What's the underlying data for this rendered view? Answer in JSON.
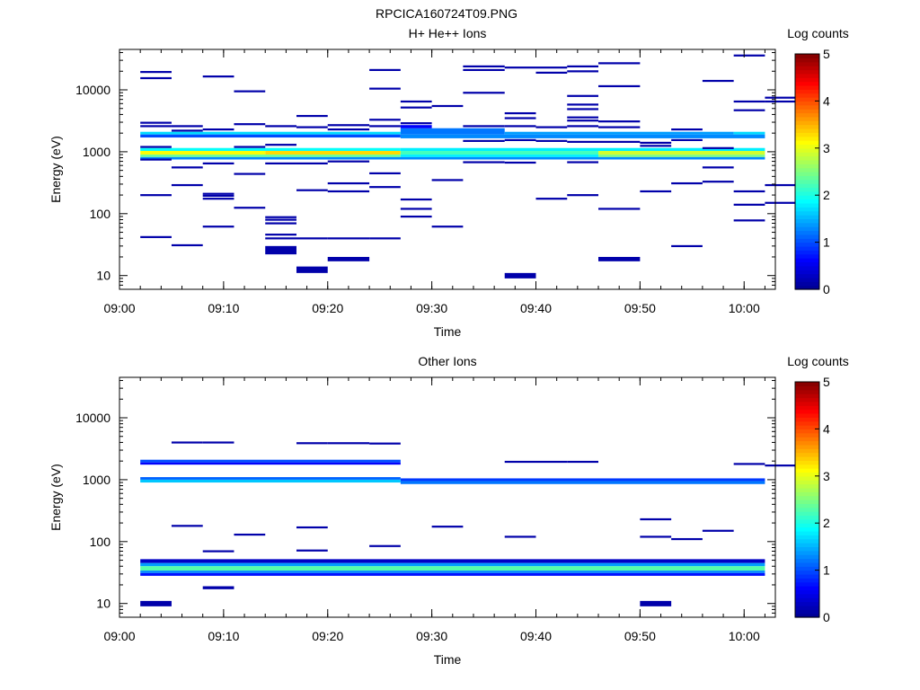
{
  "figure_title": "RPCICA160724T09.PNG",
  "colormap": [
    "#00008f",
    "#0000ff",
    "#0080ff",
    "#00ffff",
    "#80ff80",
    "#ffff00",
    "#ff8000",
    "#ff0000",
    "#800000"
  ],
  "chart_data": [
    {
      "type": "heatmap",
      "title": "H+ He++ Ions",
      "xlabel": "Time",
      "ylabel": "Energy (eV)",
      "x_ticks": [
        "09:00",
        "09:10",
        "09:20",
        "09:30",
        "09:40",
        "09:50",
        "10:00"
      ],
      "x_range": [
        "09:00",
        "10:03"
      ],
      "y_scale": "log",
      "y_ticks": [
        "10",
        "100",
        "1000",
        "10000"
      ],
      "y_range_eV": [
        6,
        45000
      ],
      "colorbar": {
        "label": "Log counts",
        "range": [
          0,
          5
        ],
        "ticks": [
          "0",
          "1",
          "2",
          "3",
          "4",
          "5"
        ]
      },
      "time_bins": [
        "09:02",
        "09:05",
        "09:08",
        "09:11",
        "09:14",
        "09:17",
        "09:20",
        "09:24",
        "09:27",
        "09:30",
        "09:33",
        "09:37",
        "09:40",
        "09:43",
        "09:46",
        "09:50",
        "09:53",
        "09:56",
        "09:59",
        "10:02"
      ],
      "cells": [
        {
          "t0": "09:02",
          "t1": "09:27",
          "e0": 1900,
          "e1": 2100,
          "v": 1.7
        },
        {
          "t0": "09:27",
          "t1": "09:37",
          "e0": 1900,
          "e1": 2400,
          "v": 1.2
        },
        {
          "t0": "09:37",
          "t1": "09:59",
          "e0": 1900,
          "e1": 2100,
          "v": 1.4
        },
        {
          "t0": "09:59",
          "t1": "10:02",
          "e0": 1900,
          "e1": 2100,
          "v": 1.7
        },
        {
          "t0": "09:02",
          "t1": "09:27",
          "e0": 1700,
          "e1": 1900,
          "v": 1.0
        },
        {
          "t0": "09:27",
          "t1": "10:02",
          "e0": 1650,
          "e1": 1900,
          "v": 1.3
        },
        {
          "t0": "09:02",
          "t1": "09:27",
          "e0": 1030,
          "e1": 1150,
          "v": 1.9
        },
        {
          "t0": "09:27",
          "t1": "10:02",
          "e0": 1030,
          "e1": 1150,
          "v": 1.8
        },
        {
          "t0": "09:02",
          "t1": "09:14",
          "e0": 900,
          "e1": 1030,
          "v": 3.1
        },
        {
          "t0": "09:14",
          "t1": "09:27",
          "e0": 900,
          "e1": 1030,
          "v": 3.3
        },
        {
          "t0": "09:27",
          "t1": "09:46",
          "e0": 900,
          "e1": 1030,
          "v": 2.2
        },
        {
          "t0": "09:46",
          "t1": "10:02",
          "e0": 900,
          "e1": 1030,
          "v": 2.9
        },
        {
          "t0": "09:02",
          "t1": "09:27",
          "e0": 820,
          "e1": 900,
          "v": 2.4
        },
        {
          "t0": "09:27",
          "t1": "09:46",
          "e0": 820,
          "e1": 900,
          "v": 1.8
        },
        {
          "t0": "09:46",
          "t1": "10:02",
          "e0": 820,
          "e1": 900,
          "v": 2.5
        },
        {
          "t0": "09:02",
          "t1": "10:02",
          "e0": 750,
          "e1": 820,
          "v": 1.3
        },
        {
          "t0": "09:27",
          "t1": "09:30",
          "e0": 2400,
          "e1": 2700,
          "v": 0.6
        },
        {
          "t0": "09:37",
          "t1": "09:40",
          "e0": 9,
          "e1": 11,
          "v": 0.15
        },
        {
          "t0": "09:14",
          "t1": "09:17",
          "e0": 22,
          "e1": 30,
          "v": 0.15
        },
        {
          "t0": "09:17",
          "t1": "09:20",
          "e0": 11,
          "e1": 14,
          "v": 0.15
        },
        {
          "t0": "09:20",
          "t1": "09:24",
          "e0": 17,
          "e1": 20,
          "v": 0.15
        },
        {
          "t0": "09:46",
          "t1": "09:50",
          "e0": 17,
          "e1": 20,
          "v": 0.15
        }
      ],
      "sparse_lines": [
        {
          "t": "09:02",
          "e": [
            19500,
            15500,
            2950,
            2600,
            1200,
            750,
            200,
            42
          ]
        },
        {
          "t": "09:05",
          "e": [
            2600,
            2200,
            560,
            290,
            31
          ]
        },
        {
          "t": "09:08",
          "e": [
            16500,
            2300,
            650,
            210,
            195,
            175,
            62
          ]
        },
        {
          "t": "09:11",
          "e": [
            9500,
            2800,
            1200,
            440,
            125
          ]
        },
        {
          "t": "09:14",
          "e": [
            2600,
            1300,
            650,
            88,
            80,
            70,
            46,
            40
          ]
        },
        {
          "t": "09:17",
          "e": [
            3800,
            2500,
            650,
            240,
            40
          ]
        },
        {
          "t": "09:20",
          "e": [
            2700,
            2300,
            700,
            310,
            230,
            40
          ]
        },
        {
          "t": "09:24",
          "e": [
            21000,
            10500,
            3300,
            2600,
            450,
            270,
            40
          ]
        },
        {
          "t": "09:27",
          "e": [
            6500,
            5200,
            2900,
            170,
            120,
            90
          ]
        },
        {
          "t": "09:30",
          "e": [
            5500,
            350,
            62
          ]
        },
        {
          "t": "09:33",
          "e": [
            24000,
            21000,
            9000,
            2600,
            1500,
            680
          ]
        },
        {
          "t": "09:37",
          "e": [
            23000,
            4200,
            3500,
            2600,
            1550,
            670
          ]
        },
        {
          "t": "09:40",
          "e": [
            23000,
            19000,
            2500,
            1500,
            175
          ]
        },
        {
          "t": "09:43",
          "e": [
            24000,
            20000,
            8000,
            5800,
            4900,
            3600,
            3200,
            2600,
            1450,
            680,
            200
          ]
        },
        {
          "t": "09:46",
          "e": [
            27000,
            11500,
            3100,
            2500,
            1450,
            120
          ]
        },
        {
          "t": "09:50",
          "e": [
            1400,
            1250,
            230
          ]
        },
        {
          "t": "09:53",
          "e": [
            2300,
            1550,
            310,
            30
          ]
        },
        {
          "t": "09:56",
          "e": [
            14000,
            1150,
            560,
            330
          ]
        },
        {
          "t": "09:59",
          "e": [
            36000,
            6500,
            4700,
            230,
            140,
            78
          ]
        },
        {
          "t": "10:02",
          "e": [
            7500,
            6500,
            290,
            150
          ]
        }
      ]
    },
    {
      "type": "heatmap",
      "title": "Other Ions",
      "xlabel": "Time",
      "ylabel": "Energy (eV)",
      "x_ticks": [
        "09:00",
        "09:10",
        "09:20",
        "09:30",
        "09:40",
        "09:50",
        "10:00"
      ],
      "x_range": [
        "09:00",
        "10:03"
      ],
      "y_scale": "log",
      "y_ticks": [
        "10",
        "100",
        "1000",
        "10000"
      ],
      "y_range_eV": [
        6,
        45000
      ],
      "colorbar": {
        "label": "Log counts",
        "range": [
          0,
          5
        ],
        "ticks": [
          "0",
          "1",
          "2",
          "3",
          "4",
          "5"
        ]
      },
      "time_bins": [
        "09:02",
        "09:05",
        "09:08",
        "09:11",
        "09:14",
        "09:17",
        "09:20",
        "09:24",
        "09:27",
        "09:30",
        "09:33",
        "09:37",
        "09:40",
        "09:43",
        "09:46",
        "09:50",
        "09:53",
        "09:56",
        "09:59",
        "10:02"
      ],
      "cells": [
        {
          "t0": "09:02",
          "t1": "09:27",
          "e0": 1900,
          "e1": 2100,
          "v": 1.0
        },
        {
          "t0": "09:02",
          "t1": "09:27",
          "e0": 1750,
          "e1": 1900,
          "v": 0.6
        },
        {
          "t0": "09:02",
          "t1": "09:27",
          "e0": 1000,
          "e1": 1100,
          "v": 1.1
        },
        {
          "t0": "09:27",
          "t1": "10:02",
          "e0": 950,
          "e1": 1050,
          "v": 0.9
        },
        {
          "t0": "09:02",
          "t1": "09:27",
          "e0": 900,
          "e1": 1000,
          "v": 1.6
        },
        {
          "t0": "09:27",
          "t1": "10:02",
          "e0": 850,
          "e1": 950,
          "v": 1.2
        },
        {
          "t0": "09:02",
          "t1": "10:02",
          "e0": 45,
          "e1": 52,
          "v": 0.3
        },
        {
          "t0": "09:02",
          "t1": "10:02",
          "e0": 40,
          "e1": 45,
          "v": 1.4
        },
        {
          "t0": "09:02",
          "t1": "10:02",
          "e0": 34,
          "e1": 40,
          "v": 2.3
        },
        {
          "t0": "09:02",
          "t1": "10:02",
          "e0": 31,
          "e1": 34,
          "v": 1.3
        },
        {
          "t0": "09:02",
          "t1": "10:02",
          "e0": 28,
          "e1": 31,
          "v": 0.7
        },
        {
          "t0": "09:02",
          "t1": "09:05",
          "e0": 9,
          "e1": 11,
          "v": 0.15
        },
        {
          "t0": "09:50",
          "t1": "09:53",
          "e0": 9,
          "e1": 11,
          "v": 0.15
        },
        {
          "t0": "09:08",
          "t1": "09:11",
          "e0": 17,
          "e1": 19,
          "v": 0.15
        }
      ],
      "sparse_lines": [
        {
          "t": "09:05",
          "e": [
            4000,
            180
          ]
        },
        {
          "t": "09:08",
          "e": [
            4000,
            70
          ]
        },
        {
          "t": "09:11",
          "e": [
            130
          ]
        },
        {
          "t": "09:17",
          "e": [
            3900,
            170,
            72
          ]
        },
        {
          "t": "09:20",
          "e": [
            3900
          ]
        },
        {
          "t": "09:24",
          "e": [
            3850,
            85
          ]
        },
        {
          "t": "09:30",
          "e": [
            175
          ]
        },
        {
          "t": "09:37",
          "e": [
            1950,
            120
          ]
        },
        {
          "t": "09:40",
          "e": [
            1950
          ]
        },
        {
          "t": "09:43",
          "e": [
            1950
          ]
        },
        {
          "t": "09:50",
          "e": [
            230,
            120
          ]
        },
        {
          "t": "09:53",
          "e": [
            110
          ]
        },
        {
          "t": "09:56",
          "e": [
            150
          ]
        },
        {
          "t": "09:59",
          "e": [
            1800
          ]
        },
        {
          "t": "10:02",
          "e": [
            1700
          ]
        }
      ]
    }
  ]
}
